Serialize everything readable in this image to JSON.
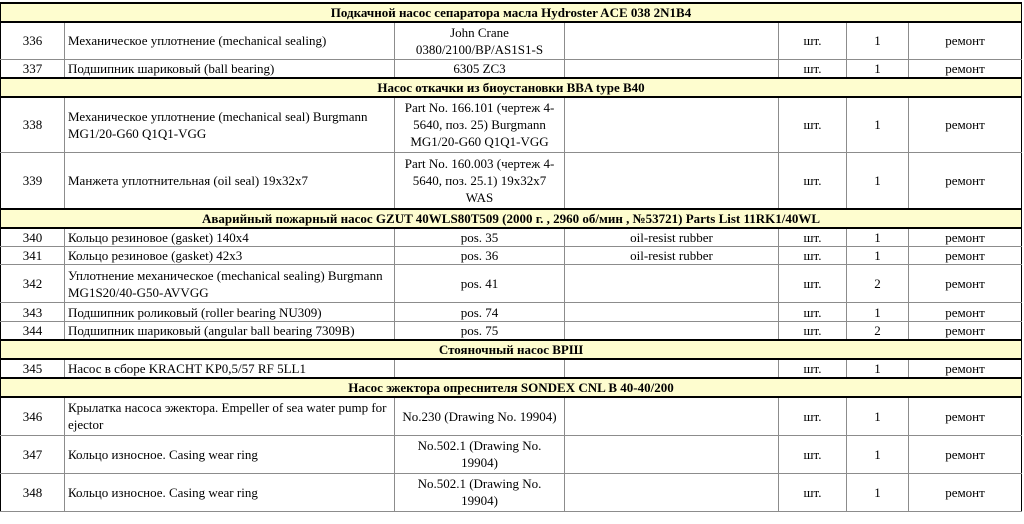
{
  "sections": [
    {
      "title": "Подкачной насос сепаратора масла Hydroster ACE 038 2N1B4",
      "rows": [
        {
          "no": "336",
          "name": "Механическое уплотнение (mechanical sealing)",
          "ref": "John Crane 0380/2100/BP/AS1S1-S",
          "material": "",
          "unit": "шт.",
          "qty": "1",
          "purpose": "ремонт"
        },
        {
          "no": "337",
          "name": "Подшипник шариковый (ball bearing)",
          "ref": "6305 ZC3",
          "material": "",
          "unit": "шт.",
          "qty": "1",
          "purpose": "ремонт"
        }
      ]
    },
    {
      "title": "Насос откачки из биоустановки BBA type B40",
      "rows": [
        {
          "no": "338",
          "name": "Механическое уплотнение (mechanical seal) Burgmann MG1/20-G60 Q1Q1-VGG",
          "ref": "Part No. 166.101 (чертеж 4-5640, поз. 25) Burgmann MG1/20-G60 Q1Q1-VGG",
          "material": "",
          "unit": "шт.",
          "qty": "1",
          "purpose": "ремонт"
        },
        {
          "no": "339",
          "name": "Манжета уплотнительная (oil seal) 19x32x7",
          "ref": "Part No. 160.003 (чертеж 4-5640, поз. 25.1) 19x32x7 WAS",
          "material": "",
          "unit": "шт.",
          "qty": "1",
          "purpose": "ремонт"
        }
      ]
    },
    {
      "title": "Аварийный пожарный насос GZUT 40WLS80T509 (2000 г. , 2960 об/мин , №53721) Parts List 11RK1/40WL",
      "rows": [
        {
          "no": "340",
          "name": "Кольцо резиновое (gasket) 140x4",
          "ref": "pos. 35",
          "material": "oil-resist rubber",
          "unit": "шт.",
          "qty": "1",
          "purpose": "ремонт"
        },
        {
          "no": "341",
          "name": "Кольцо резиновое (gasket) 42x3",
          "ref": "pos. 36",
          "material": "oil-resist rubber",
          "unit": "шт.",
          "qty": "1",
          "purpose": "ремонт"
        },
        {
          "no": "342",
          "name": "Уплотнение механическое (mechanical sealing) Burgmann MG1S20/40-G50-AVVGG",
          "ref": "pos. 41",
          "material": "",
          "unit": "шт.",
          "qty": "2",
          "purpose": "ремонт"
        },
        {
          "no": "343",
          "name": "Подшипник роликовый (roller bearing NU309)",
          "ref": "pos. 74",
          "material": "",
          "unit": "шт.",
          "qty": "1",
          "purpose": "ремонт"
        },
        {
          "no": "344",
          "name": "Подшипник шариковый (angular ball bearing 7309B)",
          "ref": "pos. 75",
          "material": "",
          "unit": "шт.",
          "qty": "2",
          "purpose": "ремонт"
        }
      ]
    },
    {
      "title": "Стояночный насос ВРШ",
      "rows": [
        {
          "no": "345",
          "name": "Насос в сборе KRACHT KP0,5/57 RF 5LL1",
          "ref": "",
          "material": "",
          "unit": "шт.",
          "qty": "1",
          "purpose": "ремонт"
        }
      ]
    },
    {
      "title": "Насос эжектора опреснителя SONDEX CNL B 40-40/200",
      "rows": [
        {
          "no": "346",
          "name": "Крылатка насоса эжектора. Empeller of sea water pump for ejector",
          "ref": "No.230 (Drawing No. 19904)",
          "material": "",
          "unit": "шт.",
          "qty": "1",
          "purpose": "ремонт"
        },
        {
          "no": "347",
          "name": "Кольцо износное. Casing wear ring",
          "ref": "No.502.1 (Drawing No. 19904)",
          "material": "",
          "unit": "шт.",
          "qty": "1",
          "purpose": "ремонт"
        },
        {
          "no": "348",
          "name": "Кольцо износное. Casing wear ring",
          "ref": "No.502.1 (Drawing No. 19904)",
          "material": "",
          "unit": "шт.",
          "qty": "1",
          "purpose": "ремонт"
        }
      ]
    }
  ]
}
